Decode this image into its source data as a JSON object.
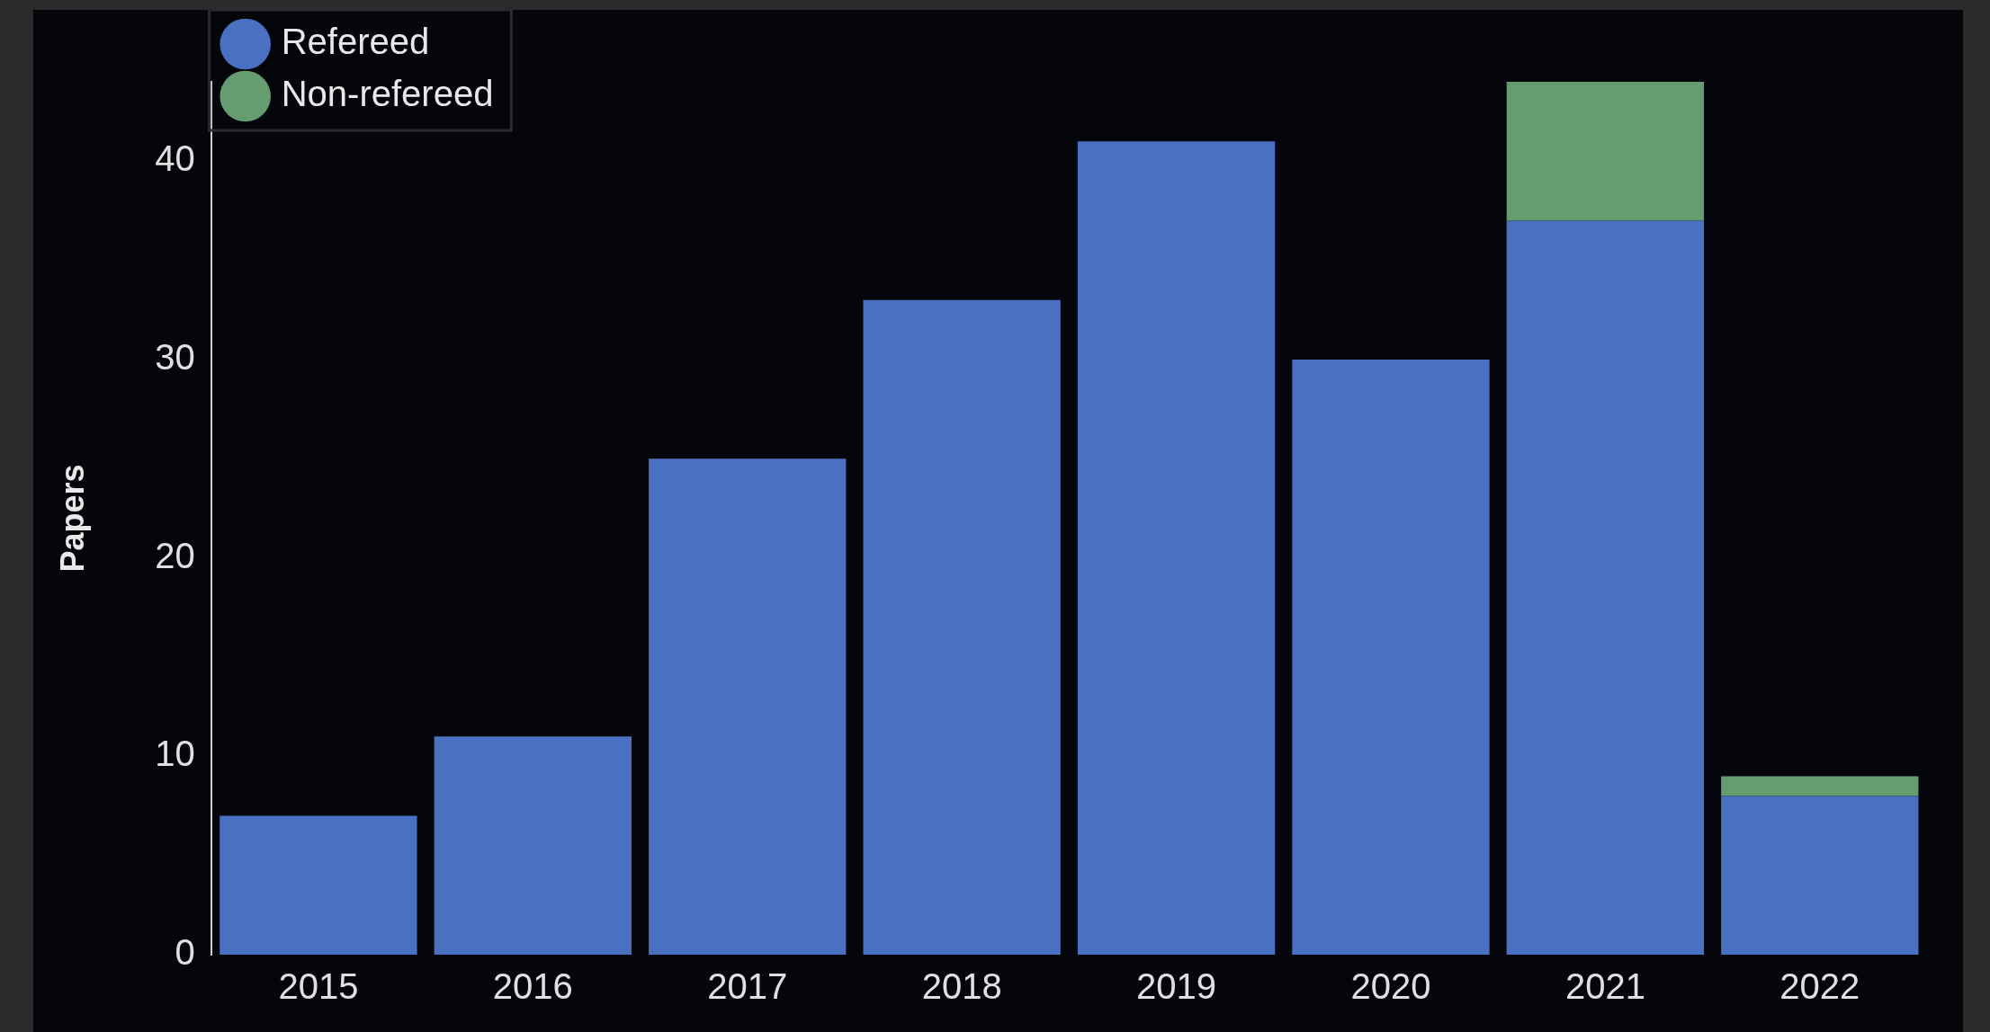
{
  "chart_data": {
    "type": "bar",
    "ylabel": "Papers",
    "categories": [
      "2015",
      "2016",
      "2017",
      "2018",
      "2019",
      "2020",
      "2021",
      "2022"
    ],
    "series": [
      {
        "name": "Refereed",
        "color": "#4a70c2",
        "values": [
          7,
          11,
          25,
          33,
          41,
          30,
          37,
          8
        ]
      },
      {
        "name": "Non-refereed",
        "color": "#659c70",
        "values": [
          0,
          0,
          0,
          0,
          0,
          0,
          7,
          1
        ]
      }
    ],
    "stacked": true,
    "ylim": [
      0,
      44
    ],
    "yticks": [
      0,
      10,
      20,
      30,
      40
    ],
    "grid": false,
    "legend": "top left"
  }
}
